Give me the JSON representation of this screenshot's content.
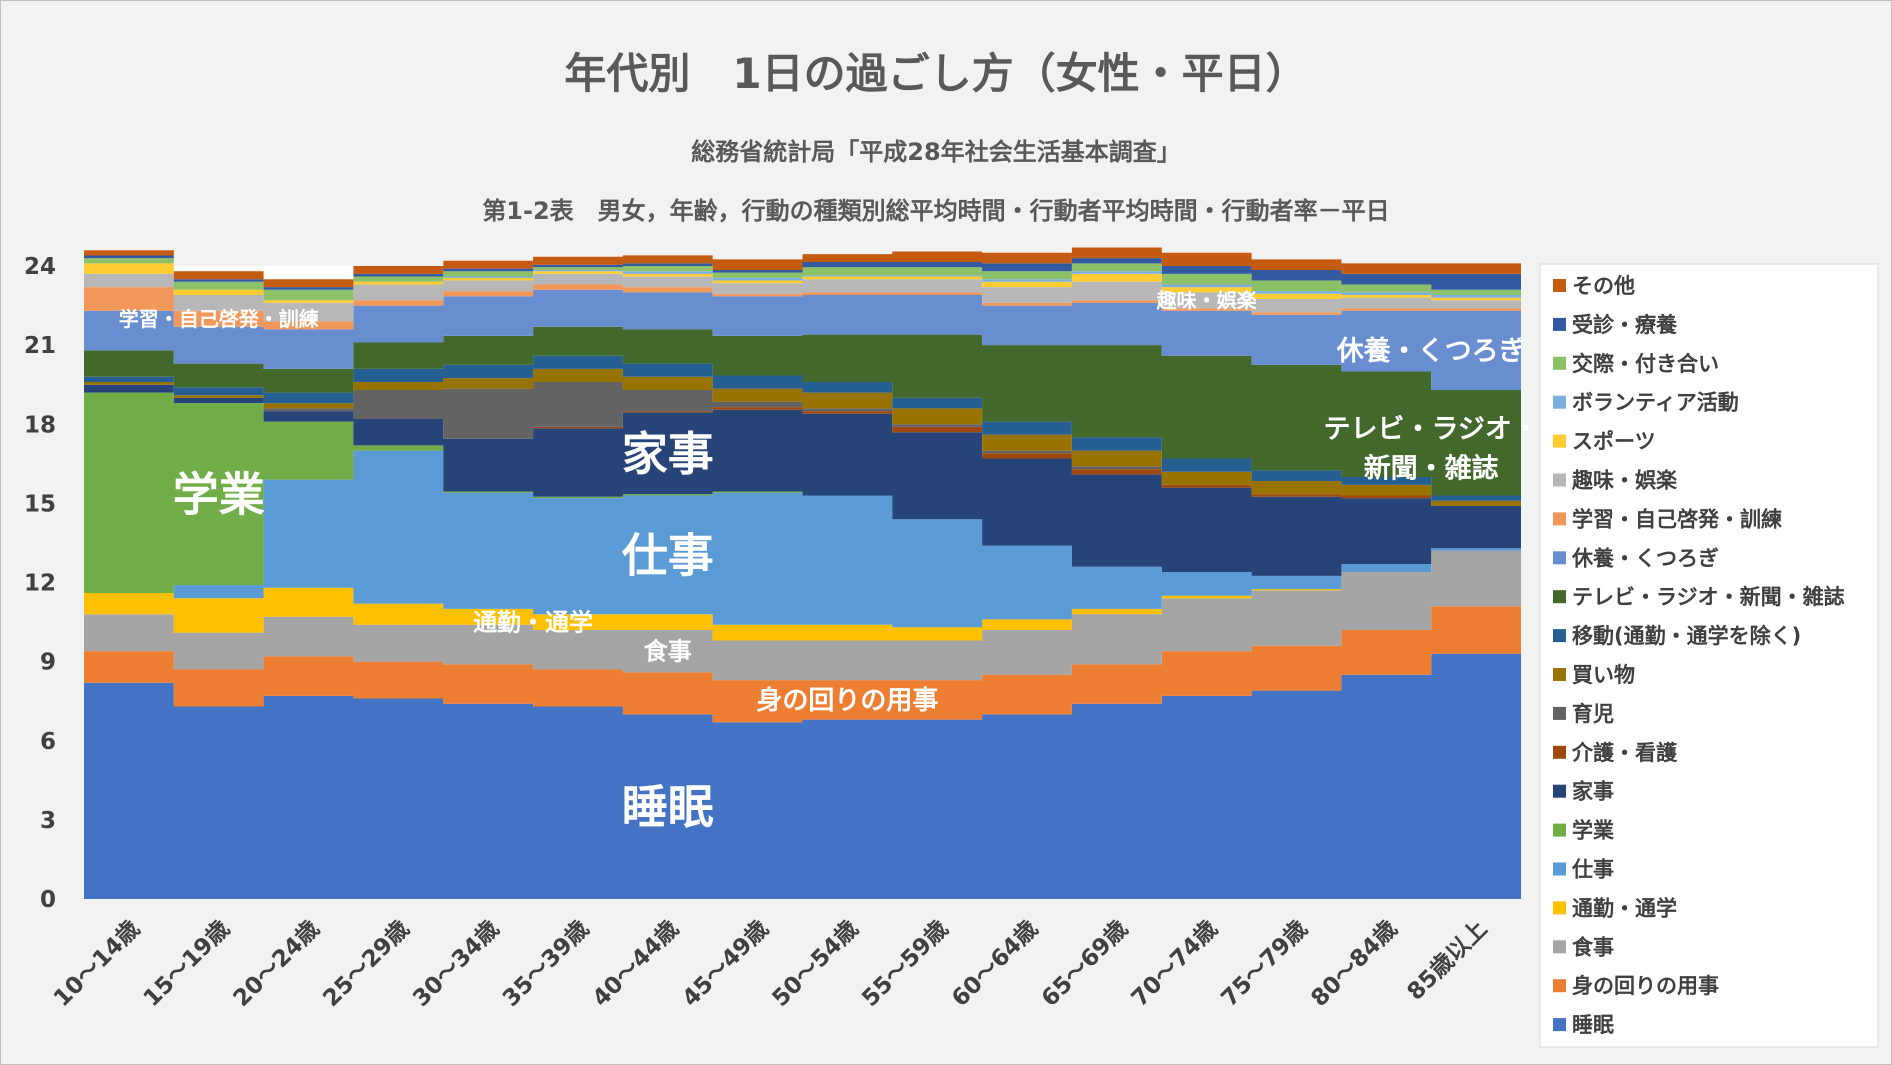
{
  "chart_data": {
    "type": "area",
    "stacked": true,
    "step": true,
    "title": "年代別　1日の過ごし方（女性・平日）",
    "subtitle1": "総務省統計局「平成28年社会生活基本調査」",
    "subtitle2": "第1-2表　男女，年齢，行動の種類別総平均時間・行動者平均時間・行動者率－平日",
    "ylim": [
      0,
      24
    ],
    "yticks": [
      "0",
      "3",
      "6",
      "9",
      "12",
      "15",
      "18",
      "21",
      "24"
    ],
    "legend_position": "right",
    "categories": [
      "10～14歳",
      "15～19歳",
      "20～24歳",
      "25～29歳",
      "30～34歳",
      "35～39歳",
      "40～44歳",
      "45～49歳",
      "50～54歳",
      "55～59歳",
      "60～64歳",
      "65～69歳",
      "70～74歳",
      "75～79歳",
      "80～84歳",
      "85歳以上"
    ],
    "series": [
      {
        "name": "睡眠",
        "color": "#4472c4",
        "values": [
          8.2,
          7.3,
          7.7,
          7.6,
          7.4,
          7.3,
          7.0,
          6.7,
          6.8,
          6.8,
          7.0,
          7.4,
          7.7,
          7.9,
          8.5,
          9.3
        ]
      },
      {
        "name": "身の回りの用事",
        "color": "#ed7d31",
        "values": [
          1.2,
          1.4,
          1.5,
          1.4,
          1.5,
          1.4,
          1.6,
          1.6,
          1.5,
          1.5,
          1.5,
          1.5,
          1.7,
          1.7,
          1.7,
          1.8
        ]
      },
      {
        "name": "食事",
        "color": "#a5a5a5",
        "values": [
          1.4,
          1.4,
          1.5,
          1.4,
          1.5,
          1.5,
          1.6,
          1.5,
          1.5,
          1.5,
          1.7,
          1.9,
          2.0,
          2.1,
          2.2,
          2.1
        ]
      },
      {
        "name": "通勤・通学",
        "color": "#ffc000",
        "values": [
          0.8,
          1.3,
          1.1,
          0.8,
          0.6,
          0.6,
          0.6,
          0.6,
          0.6,
          0.5,
          0.4,
          0.2,
          0.1,
          0.05,
          0.0,
          0.0
        ]
      },
      {
        "name": "仕事",
        "color": "#5b9bd5",
        "values": [
          0.0,
          0.5,
          4.1,
          5.8,
          4.4,
          4.4,
          4.5,
          5.0,
          4.9,
          4.1,
          2.8,
          1.6,
          0.9,
          0.5,
          0.3,
          0.1
        ]
      },
      {
        "name": "学業",
        "color": "#70ad47",
        "values": [
          7.6,
          6.9,
          2.2,
          0.2,
          0.05,
          0.05,
          0.05,
          0.05,
          0.0,
          0.0,
          0.0,
          0.0,
          0.0,
          0.0,
          0.0,
          0.0
        ]
      },
      {
        "name": "家事",
        "color": "#264478",
        "values": [
          0.3,
          0.2,
          0.4,
          1.0,
          2.0,
          2.6,
          3.1,
          3.1,
          3.1,
          3.3,
          3.3,
          3.5,
          3.2,
          3.0,
          2.5,
          1.6
        ]
      },
      {
        "name": "介護・看護",
        "color": "#9e480e",
        "values": [
          0.0,
          0.0,
          0.0,
          0.0,
          0.0,
          0.05,
          0.05,
          0.1,
          0.1,
          0.2,
          0.2,
          0.2,
          0.1,
          0.1,
          0.1,
          0.0
        ]
      },
      {
        "name": "育児",
        "color": "#636363",
        "values": [
          0.0,
          0.0,
          0.1,
          1.1,
          1.9,
          1.7,
          0.8,
          0.2,
          0.1,
          0.1,
          0.1,
          0.1,
          0.0,
          0.0,
          0.0,
          0.0
        ]
      },
      {
        "name": "買い物",
        "color": "#997300",
        "values": [
          0.1,
          0.1,
          0.2,
          0.3,
          0.4,
          0.5,
          0.5,
          0.5,
          0.6,
          0.6,
          0.6,
          0.6,
          0.5,
          0.5,
          0.4,
          0.2
        ]
      },
      {
        "name": "移動(通勤・通学を除く)",
        "color": "#255e91",
        "values": [
          0.2,
          0.3,
          0.4,
          0.5,
          0.5,
          0.5,
          0.5,
          0.5,
          0.4,
          0.4,
          0.5,
          0.5,
          0.5,
          0.4,
          0.3,
          0.2
        ]
      },
      {
        "name": "テレビ・ラジオ・新聞・雑誌",
        "color": "#43682b",
        "values": [
          1.0,
          0.9,
          0.9,
          1.0,
          1.1,
          1.1,
          1.3,
          1.5,
          1.8,
          2.4,
          2.9,
          3.5,
          3.9,
          4.0,
          4.0,
          4.0
        ]
      },
      {
        "name": "休養・くつろぎ",
        "color": "#698ed0",
        "values": [
          1.5,
          1.4,
          1.5,
          1.4,
          1.5,
          1.4,
          1.4,
          1.5,
          1.5,
          1.5,
          1.5,
          1.6,
          1.7,
          1.9,
          2.3,
          3.0
        ]
      },
      {
        "name": "学習・自己啓発・訓練",
        "color": "#f1975a",
        "values": [
          0.9,
          0.6,
          0.3,
          0.2,
          0.2,
          0.2,
          0.2,
          0.1,
          0.1,
          0.1,
          0.1,
          0.1,
          0.1,
          0.1,
          0.1,
          0.1
        ]
      },
      {
        "name": "趣味・娯楽",
        "color": "#b7b7b7",
        "values": [
          0.5,
          0.6,
          0.7,
          0.6,
          0.4,
          0.4,
          0.4,
          0.4,
          0.5,
          0.5,
          0.6,
          0.7,
          0.6,
          0.5,
          0.4,
          0.3
        ]
      },
      {
        "name": "スポーツ",
        "color": "#ffcd33",
        "values": [
          0.4,
          0.2,
          0.1,
          0.1,
          0.1,
          0.1,
          0.1,
          0.1,
          0.1,
          0.1,
          0.2,
          0.3,
          0.2,
          0.2,
          0.1,
          0.1
        ]
      },
      {
        "name": "ボランティア活動",
        "color": "#7cafdd",
        "values": [
          0.0,
          0.0,
          0.0,
          0.0,
          0.05,
          0.05,
          0.1,
          0.1,
          0.05,
          0.05,
          0.1,
          0.1,
          0.1,
          0.1,
          0.1,
          0.1
        ]
      },
      {
        "name": "交際・付き合い",
        "color": "#8cc168",
        "values": [
          0.2,
          0.3,
          0.4,
          0.2,
          0.2,
          0.1,
          0.2,
          0.2,
          0.3,
          0.3,
          0.3,
          0.3,
          0.4,
          0.4,
          0.3,
          0.2
        ]
      },
      {
        "name": "受診・療養",
        "color": "#335aa1",
        "values": [
          0.1,
          0.1,
          0.1,
          0.1,
          0.1,
          0.1,
          0.1,
          0.1,
          0.2,
          0.2,
          0.3,
          0.2,
          0.3,
          0.4,
          0.4,
          0.6
        ]
      },
      {
        "name": "その他",
        "color": "#c55a11",
        "values": [
          0.2,
          0.3,
          0.3,
          0.3,
          0.3,
          0.3,
          0.3,
          0.4,
          0.3,
          0.4,
          0.4,
          0.4,
          0.5,
          0.4,
          0.4,
          0.4
        ]
      }
    ],
    "annotations": [
      {
        "text": "学習・自己啓発・訓練",
        "series": "学習・自己啓発・訓練",
        "at": 1.5,
        "size": 20
      },
      {
        "text": "趣味・娯楽",
        "series": "趣味・娯楽",
        "at": 12.5,
        "size": 20
      },
      {
        "text": "休養・くつろぎ",
        "series": "休養・くつろぎ",
        "at": 15.0,
        "size": 27
      },
      {
        "text": "テレビ・ラジオ・",
        "series": "テレビ・ラジオ・新聞・雑誌",
        "at": 15.0,
        "size": 27,
        "offset": -0.55
      },
      {
        "text": "新聞・雑誌",
        "series": "テレビ・ラジオ・新聞・雑誌",
        "at": 15.0,
        "size": 27,
        "offset": 0.95
      },
      {
        "text": "学業",
        "series": "学業",
        "at": 1.5,
        "size": 46
      },
      {
        "text": "家事",
        "series": "家事",
        "at": 6.5,
        "size": 46
      },
      {
        "text": "仕事",
        "series": "仕事",
        "at": 6.5,
        "size": 46
      },
      {
        "text": "通勤・通学",
        "series": "通勤・通学",
        "at": 5.0,
        "size": 24
      },
      {
        "text": "食事",
        "series": "食事",
        "at": 6.5,
        "size": 24
      },
      {
        "text": "身の回りの用事",
        "series": "身の回りの用事",
        "at": 8.5,
        "size": 26
      },
      {
        "text": "睡眠",
        "series": "睡眠",
        "at": 6.5,
        "size": 46
      }
    ]
  }
}
